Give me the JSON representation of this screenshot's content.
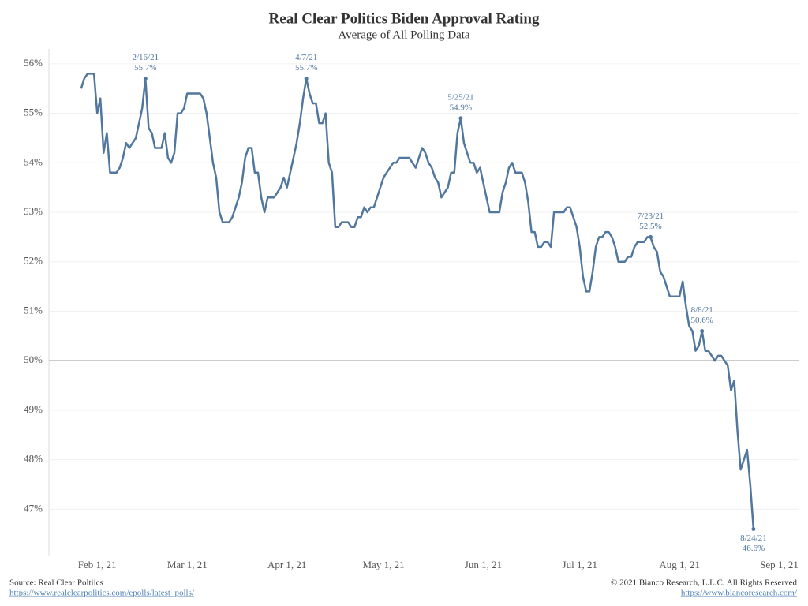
{
  "chart_data": {
    "type": "line",
    "title": "Real Clear Politics Biden Approval Rating",
    "subtitle": "Average of All Polling Data",
    "x": [
      "2021-01-27",
      "2021-01-28",
      "2021-01-29",
      "2021-01-30",
      "2021-01-31",
      "2021-02-01",
      "2021-02-02",
      "2021-02-03",
      "2021-02-04",
      "2021-02-05",
      "2021-02-06",
      "2021-02-07",
      "2021-02-08",
      "2021-02-09",
      "2021-02-10",
      "2021-02-11",
      "2021-02-12",
      "2021-02-13",
      "2021-02-14",
      "2021-02-15",
      "2021-02-16",
      "2021-02-17",
      "2021-02-18",
      "2021-02-19",
      "2021-02-20",
      "2021-02-21",
      "2021-02-22",
      "2021-02-23",
      "2021-02-24",
      "2021-02-25",
      "2021-02-26",
      "2021-02-27",
      "2021-02-28",
      "2021-03-01",
      "2021-03-02",
      "2021-03-03",
      "2021-03-04",
      "2021-03-05",
      "2021-03-06",
      "2021-03-07",
      "2021-03-08",
      "2021-03-09",
      "2021-03-10",
      "2021-03-11",
      "2021-03-12",
      "2021-03-13",
      "2021-03-14",
      "2021-03-15",
      "2021-03-16",
      "2021-03-17",
      "2021-03-18",
      "2021-03-19",
      "2021-03-20",
      "2021-03-21",
      "2021-03-22",
      "2021-03-23",
      "2021-03-24",
      "2021-03-25",
      "2021-03-26",
      "2021-03-27",
      "2021-03-28",
      "2021-03-29",
      "2021-03-30",
      "2021-03-31",
      "2021-04-01",
      "2021-04-02",
      "2021-04-03",
      "2021-04-04",
      "2021-04-05",
      "2021-04-06",
      "2021-04-07",
      "2021-04-08",
      "2021-04-09",
      "2021-04-10",
      "2021-04-11",
      "2021-04-12",
      "2021-04-13",
      "2021-04-14",
      "2021-04-15",
      "2021-04-16",
      "2021-04-17",
      "2021-04-18",
      "2021-04-19",
      "2021-04-20",
      "2021-04-21",
      "2021-04-22",
      "2021-04-23",
      "2021-04-24",
      "2021-04-25",
      "2021-04-26",
      "2021-04-27",
      "2021-04-28",
      "2021-04-29",
      "2021-04-30",
      "2021-05-01",
      "2021-05-02",
      "2021-05-03",
      "2021-05-04",
      "2021-05-05",
      "2021-05-06",
      "2021-05-07",
      "2021-05-08",
      "2021-05-09",
      "2021-05-10",
      "2021-05-11",
      "2021-05-12",
      "2021-05-13",
      "2021-05-14",
      "2021-05-15",
      "2021-05-16",
      "2021-05-17",
      "2021-05-18",
      "2021-05-19",
      "2021-05-20",
      "2021-05-21",
      "2021-05-22",
      "2021-05-23",
      "2021-05-24",
      "2021-05-25",
      "2021-05-26",
      "2021-05-27",
      "2021-05-28",
      "2021-05-29",
      "2021-05-30",
      "2021-05-31",
      "2021-06-01",
      "2021-06-02",
      "2021-06-03",
      "2021-06-04",
      "2021-06-05",
      "2021-06-06",
      "2021-06-07",
      "2021-06-08",
      "2021-06-09",
      "2021-06-10",
      "2021-06-11",
      "2021-06-12",
      "2021-06-13",
      "2021-06-14",
      "2021-06-15",
      "2021-06-16",
      "2021-06-17",
      "2021-06-18",
      "2021-06-19",
      "2021-06-20",
      "2021-06-21",
      "2021-06-22",
      "2021-06-23",
      "2021-06-24",
      "2021-06-25",
      "2021-06-26",
      "2021-06-27",
      "2021-06-28",
      "2021-06-29",
      "2021-06-30",
      "2021-07-01",
      "2021-07-02",
      "2021-07-03",
      "2021-07-04",
      "2021-07-05",
      "2021-07-06",
      "2021-07-07",
      "2021-07-08",
      "2021-07-09",
      "2021-07-10",
      "2021-07-11",
      "2021-07-12",
      "2021-07-13",
      "2021-07-14",
      "2021-07-15",
      "2021-07-16",
      "2021-07-17",
      "2021-07-18",
      "2021-07-19",
      "2021-07-20",
      "2021-07-21",
      "2021-07-22",
      "2021-07-23",
      "2021-07-24",
      "2021-07-25",
      "2021-07-26",
      "2021-07-27",
      "2021-07-28",
      "2021-07-29",
      "2021-07-30",
      "2021-07-31",
      "2021-08-01",
      "2021-08-02",
      "2021-08-03",
      "2021-08-04",
      "2021-08-05",
      "2021-08-06",
      "2021-08-07",
      "2021-08-08",
      "2021-08-09",
      "2021-08-10",
      "2021-08-11",
      "2021-08-12",
      "2021-08-13",
      "2021-08-14",
      "2021-08-15",
      "2021-08-16",
      "2021-08-17",
      "2021-08-18",
      "2021-08-19",
      "2021-08-20",
      "2021-08-21",
      "2021-08-22",
      "2021-08-23",
      "2021-08-24"
    ],
    "series": [
      {
        "color": "#51779f",
        "values": [
          55.5,
          55.7,
          55.8,
          55.8,
          55.8,
          55.0,
          55.3,
          54.2,
          54.6,
          53.8,
          53.8,
          53.8,
          53.9,
          54.1,
          54.4,
          54.3,
          54.4,
          54.5,
          54.8,
          55.1,
          55.7,
          54.7,
          54.6,
          54.3,
          54.3,
          54.3,
          54.6,
          54.1,
          54.0,
          54.2,
          55.0,
          55.0,
          55.1,
          55.4,
          55.4,
          55.4,
          55.4,
          55.4,
          55.3,
          55.0,
          54.5,
          54.0,
          53.7,
          53.0,
          52.8,
          52.8,
          52.8,
          52.9,
          53.1,
          53.3,
          53.6,
          54.1,
          54.3,
          54.3,
          53.8,
          53.8,
          53.3,
          53.0,
          53.3,
          53.3,
          53.3,
          53.4,
          53.5,
          53.7,
          53.5,
          53.8,
          54.1,
          54.4,
          54.8,
          55.3,
          55.7,
          55.4,
          55.2,
          55.2,
          54.8,
          54.8,
          55.0,
          54.0,
          53.8,
          52.7,
          52.7,
          52.8,
          52.8,
          52.8,
          52.7,
          52.7,
          52.9,
          52.9,
          53.1,
          53.0,
          53.1,
          53.1,
          53.3,
          53.5,
          53.7,
          53.8,
          53.9,
          54.0,
          54.0,
          54.1,
          54.1,
          54.1,
          54.1,
          54.0,
          53.9,
          54.1,
          54.3,
          54.2,
          54.0,
          53.9,
          53.7,
          53.6,
          53.3,
          53.4,
          53.5,
          53.8,
          53.8,
          54.6,
          54.9,
          54.4,
          54.2,
          54.0,
          54.0,
          53.8,
          53.9,
          53.6,
          53.3,
          53.0,
          53.0,
          53.0,
          53.0,
          53.4,
          53.6,
          53.9,
          54.0,
          53.8,
          53.8,
          53.8,
          53.6,
          53.2,
          52.6,
          52.6,
          52.3,
          52.3,
          52.4,
          52.4,
          52.3,
          53.0,
          53.0,
          53.0,
          53.0,
          53.1,
          53.1,
          52.9,
          52.7,
          52.3,
          51.7,
          51.4,
          51.4,
          51.8,
          52.3,
          52.5,
          52.5,
          52.6,
          52.6,
          52.5,
          52.3,
          52.0,
          52.0,
          52.0,
          52.1,
          52.1,
          52.3,
          52.4,
          52.4,
          52.4,
          52.5,
          52.5,
          52.3,
          52.2,
          51.8,
          51.7,
          51.5,
          51.3,
          51.3,
          51.3,
          51.3,
          51.6,
          51.1,
          50.7,
          50.6,
          50.2,
          50.3,
          50.6,
          50.2,
          50.2,
          50.1,
          50.0,
          50.1,
          50.1,
          50.0,
          49.9,
          49.4,
          49.6,
          48.6,
          47.8,
          48.0,
          48.2,
          47.5,
          46.6
        ]
      }
    ],
    "xlim": [
      "2021-01-17",
      "2021-09-07"
    ],
    "xticks": [
      {
        "value": "2021-02-01",
        "label": "Feb 1, 21"
      },
      {
        "value": "2021-03-01",
        "label": "Mar 1, 21"
      },
      {
        "value": "2021-04-01",
        "label": "Apr 1, 21"
      },
      {
        "value": "2021-05-01",
        "label": "May 1, 21"
      },
      {
        "value": "2021-06-01",
        "label": "Jun 1, 21"
      },
      {
        "value": "2021-07-01",
        "label": "Jul 1, 21"
      },
      {
        "value": "2021-08-01",
        "label": "Aug 1, 21"
      },
      {
        "value": "2021-09-01",
        "label": "Sep 1, 21"
      }
    ],
    "ylim": [
      46.05,
      56.3
    ],
    "yticks": [
      {
        "value": 47,
        "label": "47%"
      },
      {
        "value": 48,
        "label": "48%"
      },
      {
        "value": 49,
        "label": "49%"
      },
      {
        "value": 50,
        "label": "50%"
      },
      {
        "value": 51,
        "label": "51%"
      },
      {
        "value": 52,
        "label": "52%"
      },
      {
        "value": 53,
        "label": "53%"
      },
      {
        "value": 54,
        "label": "54%"
      },
      {
        "value": 55,
        "label": "55%"
      },
      {
        "value": 56,
        "label": "56%"
      }
    ],
    "grid": true,
    "reference_line": 50,
    "annotations": [
      {
        "x": "2021-02-16",
        "y": 55.7,
        "text": [
          "2/16/21",
          "55.7%"
        ],
        "side": "above"
      },
      {
        "x": "2021-04-07",
        "y": 55.7,
        "text": [
          "4/7/21",
          "55.7%"
        ],
        "side": "above"
      },
      {
        "x": "2021-05-25",
        "y": 54.9,
        "text": [
          "5/25/21",
          "54.9%"
        ],
        "side": "above"
      },
      {
        "x": "2021-07-23",
        "y": 52.5,
        "text": [
          "7/23/21",
          "52.5%"
        ],
        "side": "above"
      },
      {
        "x": "2021-08-08",
        "y": 50.6,
        "text": [
          "8/8/21",
          "50.6%"
        ],
        "side": "above"
      },
      {
        "x": "2021-08-24",
        "y": 46.6,
        "text": [
          "8/24/21",
          "46.6%"
        ],
        "side": "below"
      }
    ]
  },
  "footer": {
    "source": "Source: Real Clear Poltiics",
    "source_url": "https://www.realclearpolitics.com/epolls/latest_polls/",
    "copyright": "© 2021 Bianco Research, L.L.C. All Rights Reserved",
    "site_url": "https://www.biancoresearch.com/"
  }
}
